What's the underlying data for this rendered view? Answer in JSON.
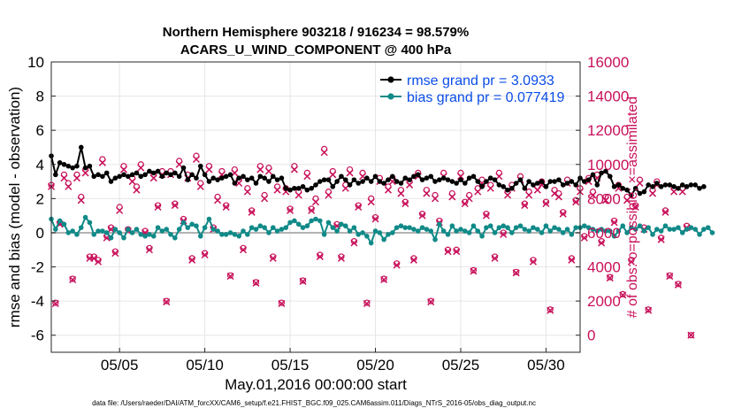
{
  "titles": {
    "line1": "Northern Hemisphere 903218 / 916234 = 98.579%",
    "line2": "ACARS_U_WIND_COMPONENT @ 400 hPa"
  },
  "legend": {
    "rmse": "rmse grand pr = 3.0933",
    "bias": "bias grand pr = 0.077419"
  },
  "axes": {
    "ylabel_left": "rmse and bias (model - observation)",
    "ylabel_right": "# of obs: o=possible; ×=assimilated",
    "xlabel": "May.01,2016 00:00:00 start",
    "left_ticks": [
      "-6",
      "-4",
      "-2",
      "0",
      "2",
      "4",
      "6",
      "8",
      "10"
    ],
    "right_ticks": [
      "0",
      "2000",
      "4000",
      "6000",
      "8000",
      "10000",
      "12000",
      "14000",
      "16000"
    ],
    "x_ticks": [
      "05/05",
      "05/10",
      "05/15",
      "05/20",
      "05/25",
      "05/30"
    ]
  },
  "footer": "data file: /Users/raeder/DAI/ATM_forcXX/CAM6_setup/f.e21.FHIST_BGC.f09_025.CAM6assim.011/Diags_NTrS_2016-05/obs_diag_output.nc",
  "colors": {
    "rmse": "#000000",
    "bias": "#108a88",
    "obs": "#c8105a",
    "zero": "#b3b3b3",
    "legend_text": "#0a4de8"
  },
  "chart_data": {
    "type": "line",
    "x_start_day": 1.0,
    "x_range": [
      1.0,
      32.0
    ],
    "x_step_days": 0.25,
    "ylim_left": [
      -7,
      10
    ],
    "ylim_right": [
      -1000,
      16000
    ],
    "x_tick_days": [
      5,
      10,
      15,
      20,
      25,
      30
    ],
    "series": [
      {
        "name": "rmse",
        "axis": "left",
        "values": [
          4.5,
          3.4,
          4.1,
          4.0,
          3.9,
          3.8,
          3.9,
          5.0,
          3.8,
          3.9,
          3.3,
          3.4,
          3.3,
          3.5,
          3.0,
          3.2,
          3.3,
          3.4,
          3.3,
          3.4,
          3.5,
          3.3,
          3.4,
          3.6,
          3.5,
          3.6,
          3.3,
          3.5,
          3.4,
          3.5,
          3.3,
          3.8,
          3.1,
          3.4,
          3.2,
          3.9,
          3.4,
          3.0,
          3.2,
          3.1,
          3.2,
          3.3,
          3.4,
          2.9,
          3.2,
          3.3,
          3.1,
          3.2,
          2.9,
          3.3,
          3.2,
          3.0,
          3.3,
          3.1,
          3.2,
          2.6,
          2.5,
          2.6,
          2.6,
          2.7,
          2.5,
          2.6,
          2.8,
          3.0,
          3.1,
          3.1,
          2.7,
          3.0,
          3.3,
          3.1,
          2.8,
          3.1,
          2.9,
          3.0,
          3.2,
          3.0,
          3.3,
          3.0,
          2.9,
          3.1,
          3.3,
          3.0,
          2.9,
          3.2,
          3.1,
          3.3,
          3.4,
          3.1,
          3.2,
          3.3,
          3.0,
          3.1,
          3.2,
          3.1,
          3.0,
          2.9,
          3.1,
          2.9,
          3.2,
          3.3,
          3.0,
          2.7,
          3.0,
          3.2,
          3.1,
          2.8,
          2.7,
          2.5,
          2.6,
          2.9,
          3.1,
          2.6,
          3.0,
          2.8,
          2.9,
          3.0,
          2.7,
          3.0,
          3.0,
          3.1,
          2.8,
          2.9,
          3.0,
          2.8,
          3.2,
          3.0,
          3.1,
          3.4,
          2.8,
          3.5,
          3.6,
          3.3,
          2.7,
          2.8,
          2.6,
          2.5,
          2.2,
          2.6,
          2.3,
          2.4,
          2.8,
          2.7,
          2.9,
          2.7,
          2.8,
          2.8,
          2.7,
          2.6,
          2.8,
          2.7,
          2.8,
          2.8,
          2.6,
          2.7
        ]
      },
      {
        "name": "bias",
        "axis": "left",
        "values": [
          0.8,
          0.2,
          0.7,
          0.5,
          0.0,
          0.1,
          -0.1,
          0.3,
          0.9,
          0.6,
          -0.1,
          0.1,
          0.1,
          0.0,
          -0.3,
          0.2,
          0.0,
          -0.3,
          0.2,
          0.0,
          0.2,
          -0.1,
          -0.2,
          -0.1,
          -0.2,
          0.3,
          0.1,
          0.2,
          -0.1,
          -0.3,
          0.2,
          0.6,
          0.3,
          0.5,
          0.4,
          -0.2,
          0.3,
          0.8,
          0.2,
          0.1,
          -0.1,
          -0.1,
          0.0,
          -0.1,
          -0.2,
          0.1,
          -0.1,
          0.3,
          0.2,
          0.4,
          0.3,
          0.0,
          0.3,
          0.1,
          0.2,
          0.3,
          0.6,
          0.7,
          0.5,
          0.3,
          0.4,
          0.7,
          0.8,
          0.7,
          -0.1,
          0.6,
          0.3,
          0.1,
          0.5,
          0.4,
          0.1,
          0.3,
          -0.1,
          0.0,
          -0.2,
          -0.6,
          0.1,
          0.0,
          -0.4,
          -0.1,
          0.0,
          0.3,
          0.4,
          0.3,
          0.3,
          0.2,
          0.1,
          0.3,
          0.2,
          0.1,
          -0.4,
          0.5,
          0.1,
          -0.1,
          0.4,
          0.1,
          0.2,
          0.1,
          0.0,
          0.4,
          0.1,
          -0.2,
          0.3,
          0.4,
          0.0,
          0.3,
          0.4,
          0.3,
          0.0,
          0.3,
          0.4,
          0.2,
          0.1,
          0.3,
          0.2,
          0.0,
          0.4,
          0.1,
          0.3,
          0.2,
          0.0,
          0.2,
          -0.1,
          0.3,
          0.3,
          0.4,
          0.3,
          0.2,
          0.1,
          0.2,
          0.1,
          0.1,
          -0.2,
          0.1,
          0.4,
          0.0,
          0.3,
          0.2,
          0.4,
          0.1,
          0.3,
          -0.1,
          0.2,
          0.1,
          0.4,
          0.2,
          0.2,
          0.3,
          0.0,
          0.2,
          0.3,
          0.2,
          -0.1,
          0.2,
          0.3,
          0.0
        ]
      },
      {
        "name": "possible",
        "axis": "right",
        "values": [
          8800,
          1900,
          6600,
          9400,
          8900,
          3300,
          9400,
          8100,
          9700,
          4600,
          4600,
          4400,
          10300,
          5800,
          6300,
          4900,
          7500,
          9900,
          6200,
          9200,
          8700,
          10000,
          6100,
          5100,
          9400,
          7600,
          9600,
          2000,
          9600,
          7700,
          10200,
          6800,
          9400,
          4500,
          10500,
          8900,
          4800,
          9900,
          6300,
          8100,
          9600,
          7600,
          3500,
          9700,
          9100,
          5100,
          8600,
          7300,
          3100,
          9900,
          8200,
          9800,
          4600,
          8700,
          1900,
          8600,
          7400,
          9900,
          8400,
          3200,
          9500,
          7400,
          8000,
          4700,
          10900,
          8400,
          9600,
          6500,
          4600,
          8800,
          9700,
          5500,
          7600,
          9500,
          1900,
          8000,
          6900,
          9200,
          3300,
          8700,
          9200,
          4200,
          8500,
          7800,
          9000,
          4500,
          9500,
          7100,
          8500,
          2000,
          8200,
          6700,
          9500,
          5000,
          8300,
          5000,
          9500,
          7800,
          8200,
          3800,
          8600,
          9100,
          7100,
          8800,
          4600,
          9500,
          6000,
          8400,
          8800,
          3700,
          9300,
          7700,
          8400,
          4400,
          8700,
          9000,
          7800,
          1500,
          8500,
          8300,
          7200,
          9100,
          4500,
          7900,
          8600,
          5800,
          9200,
          8400,
          9400,
          5500,
          8100,
          3400,
          6700,
          8800,
          2400,
          8100,
          4400,
          7600,
          9100,
          6300,
          1500,
          8500,
          9000,
          5700,
          7300,
          3500,
          8600,
          3000,
          8600,
          6400,
          0
        ]
      },
      {
        "name": "assimilated",
        "axis": "right",
        "values": [
          8700,
          1850,
          6500,
          9200,
          8700,
          3250,
          9200,
          7900,
          9500,
          4500,
          4500,
          4300,
          10100,
          5700,
          6200,
          4800,
          7300,
          9700,
          6100,
          9000,
          8500,
          9800,
          6000,
          5000,
          9200,
          7500,
          9400,
          1950,
          9400,
          7600,
          10000,
          6700,
          9200,
          4400,
          10300,
          8700,
          4700,
          9700,
          6200,
          7900,
          9400,
          7500,
          3450,
          9500,
          8900,
          5000,
          8400,
          7200,
          3050,
          9700,
          8000,
          9600,
          4500,
          8500,
          1850,
          8400,
          7300,
          9700,
          8200,
          3150,
          9300,
          7300,
          7800,
          4600,
          10700,
          8200,
          9400,
          6400,
          4500,
          8600,
          9500,
          5400,
          7500,
          9300,
          1850,
          7800,
          6800,
          9000,
          3250,
          8500,
          9000,
          4100,
          8300,
          7700,
          8800,
          4400,
          9300,
          7000,
          8300,
          1950,
          8000,
          6600,
          9300,
          4900,
          8100,
          4900,
          9300,
          7700,
          8000,
          3750,
          8400,
          8900,
          7000,
          8600,
          4500,
          9300,
          5900,
          8200,
          8600,
          3650,
          9100,
          7600,
          8200,
          4300,
          8500,
          8800,
          7700,
          1450,
          8300,
          8100,
          7100,
          8900,
          4400,
          7800,
          8400,
          5700,
          9000,
          8200,
          9200,
          5400,
          7900,
          3350,
          6600,
          8600,
          2350,
          7900,
          4300,
          7500,
          8900,
          6200,
          1450,
          8300,
          8800,
          5600,
          7200,
          3450,
          8400,
          2950,
          8400,
          6300,
          0
        ]
      }
    ]
  }
}
